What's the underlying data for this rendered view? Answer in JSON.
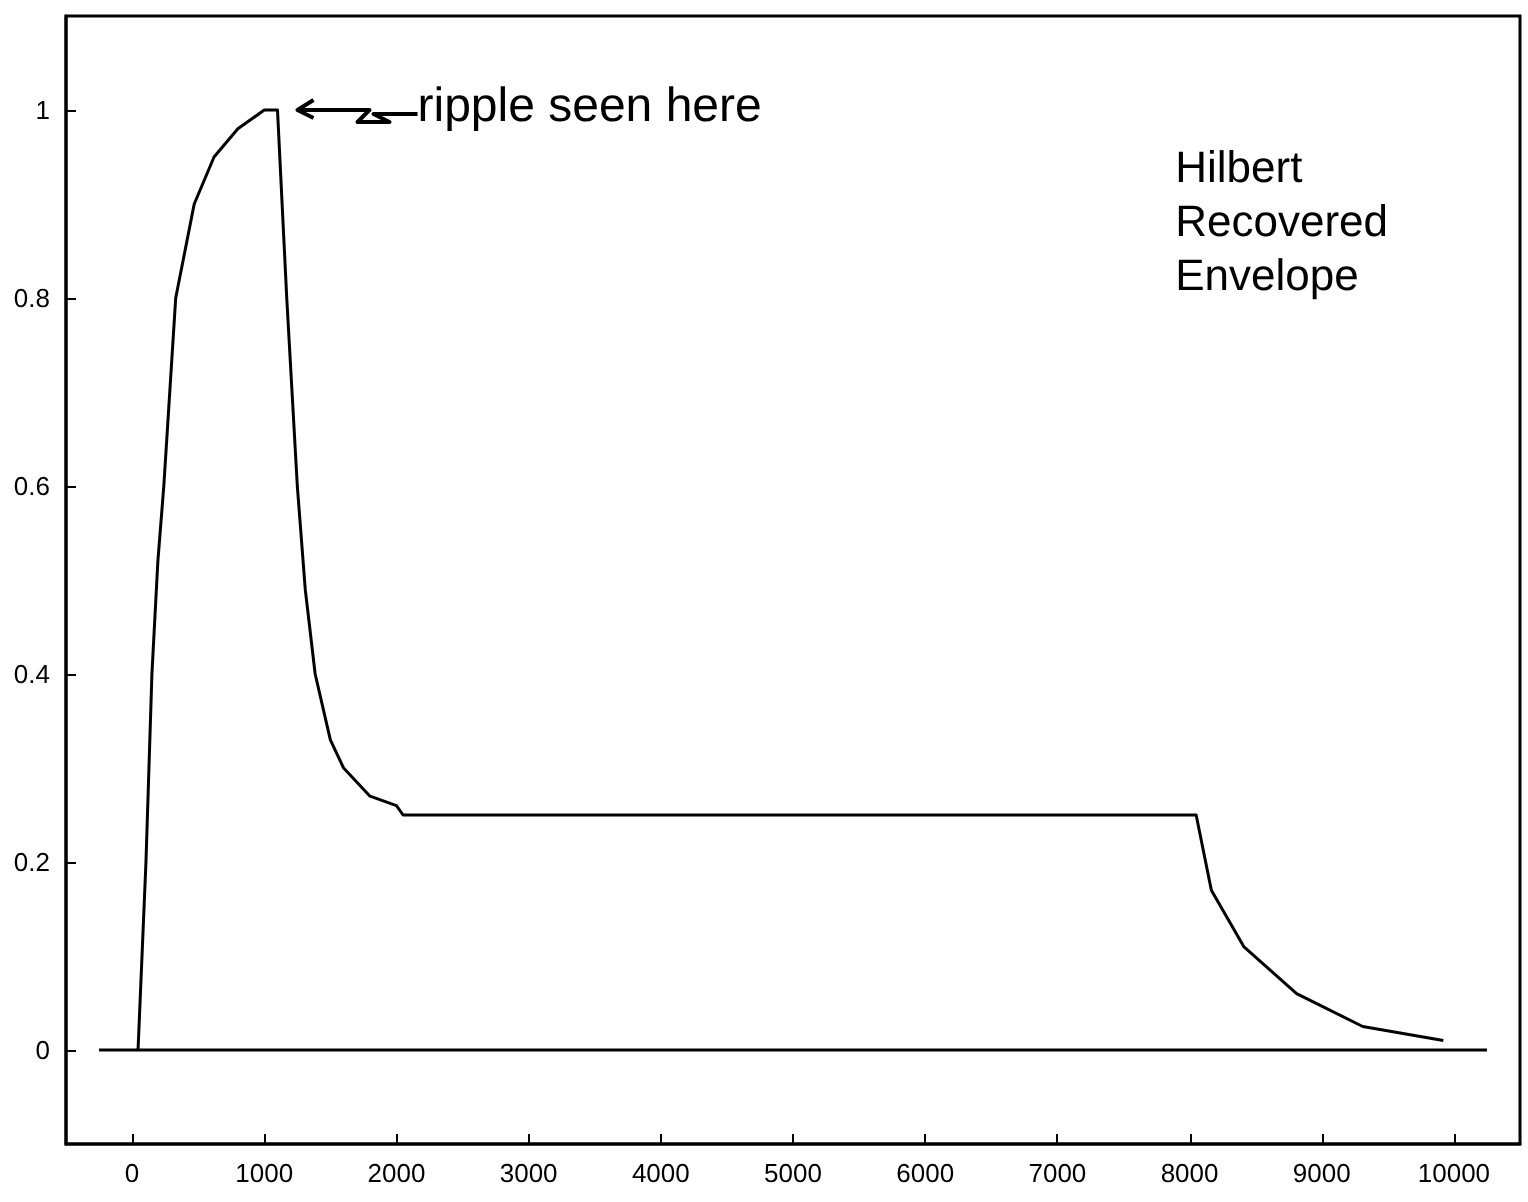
{
  "chart_data": {
    "type": "line",
    "xlim": [
      -500,
      10500
    ],
    "ylim": [
      -0.1,
      1.1
    ],
    "xticks": [
      0,
      1000,
      2000,
      3000,
      4000,
      5000,
      6000,
      7000,
      8000,
      9000,
      10000
    ],
    "yticks": [
      0,
      0.2,
      0.4,
      0.6,
      0.8,
      1
    ],
    "series": [
      {
        "color": "#000000",
        "x": [
          45,
          105,
          150,
          195,
          240,
          330,
          470,
          620,
          800,
          1000,
          1100,
          1170,
          1250,
          1310,
          1385,
          1500,
          1600,
          1800,
          2000,
          2050,
          8050,
          8165,
          8410,
          8810,
          9310,
          9920
        ],
        "values": [
          0,
          0.2,
          0.4,
          0.52,
          0.6,
          0.8,
          0.9,
          0.95,
          0.98,
          1,
          1,
          0.8,
          0.6,
          0.49,
          0.4,
          0.33,
          0.3,
          0.27,
          0.26,
          0.25,
          0.25,
          0.17,
          0.11,
          0.06,
          0.025,
          0.01
        ]
      },
      {
        "color": "#000000",
        "x": [
          -250,
          10250
        ],
        "values": [
          0,
          0
        ]
      }
    ],
    "annotations": [
      {
        "text": "ripple seen here",
        "x": 1100,
        "y": 1
      },
      "Hilbert\nRecovered\nEnvelope"
    ]
  }
}
